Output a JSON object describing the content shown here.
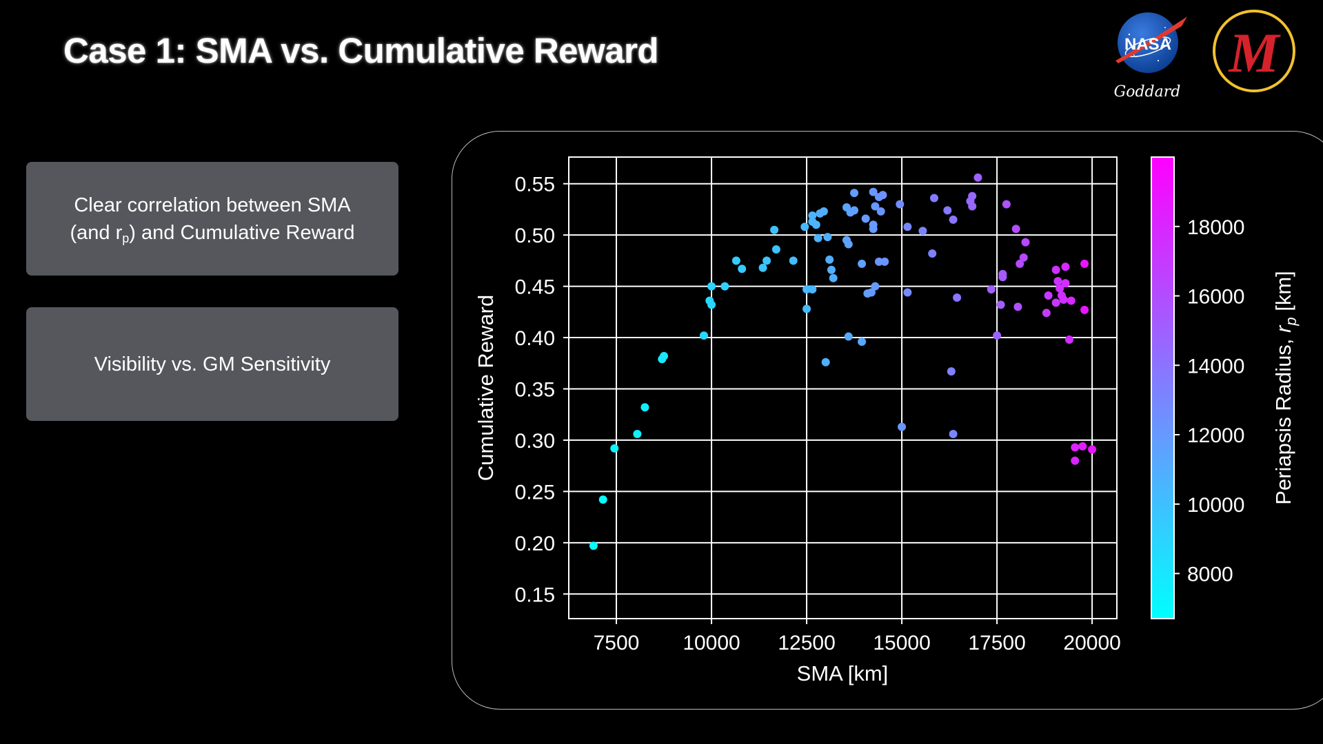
{
  "slide": {
    "title": "Case 1: SMA vs. Cumulative Reward",
    "card1": {
      "line1": "Clear correlation between SMA",
      "line2_pre": "(and r",
      "line2_sub": "p",
      "line2_post": ") and Cumulative Reward"
    },
    "card2": {
      "text": "Visibility vs. GM Sensitivity"
    }
  },
  "logos": {
    "nasa": {
      "wordmark": "NASA",
      "script": "Goddard"
    },
    "m": {
      "letter": "M",
      "ring_color": "#f2c12e",
      "letter_color": "#d6222b"
    }
  },
  "chart_data": {
    "type": "scatter",
    "xlabel": "SMA [km]",
    "ylabel": "Cumulative Reward",
    "xlim": [
      6250,
      20650
    ],
    "ylim": [
      0.126,
      0.576
    ],
    "xticks": [
      7500,
      10000,
      12500,
      15000,
      17500,
      20000
    ],
    "yticks": [
      0.15,
      0.2,
      0.25,
      0.3,
      0.35,
      0.4,
      0.45,
      0.5,
      0.55
    ],
    "ytick_labels": [
      "0.15",
      "0.20",
      "0.25",
      "0.30",
      "0.35",
      "0.40",
      "0.45",
      "0.50",
      "0.55"
    ],
    "grid": true,
    "colorbar": {
      "label": "Periapsis Radius, ",
      "label_sym": "r",
      "label_sub": "p",
      "label_unit": " [km]",
      "range": [
        6700,
        20000
      ],
      "ticks": [
        8000,
        10000,
        12000,
        14000,
        16000,
        18000
      ],
      "colormap": "cool",
      "color_low": "#00ffff",
      "color_high": "#ff00ff"
    },
    "points": [
      {
        "x": 6900,
        "y": 0.197,
        "c": 6900
      },
      {
        "x": 7150,
        "y": 0.242,
        "c": 7000
      },
      {
        "x": 7450,
        "y": 0.292,
        "c": 7200
      },
      {
        "x": 8050,
        "y": 0.306,
        "c": 7500
      },
      {
        "x": 8250,
        "y": 0.332,
        "c": 7600
      },
      {
        "x": 8700,
        "y": 0.379,
        "c": 7900
      },
      {
        "x": 8750,
        "y": 0.382,
        "c": 7950
      },
      {
        "x": 9800,
        "y": 0.402,
        "c": 8700
      },
      {
        "x": 9950,
        "y": 0.436,
        "c": 8800
      },
      {
        "x": 10000,
        "y": 0.432,
        "c": 8850
      },
      {
        "x": 10000,
        "y": 0.45,
        "c": 8900
      },
      {
        "x": 10350,
        "y": 0.45,
        "c": 9100
      },
      {
        "x": 10650,
        "y": 0.475,
        "c": 9300
      },
      {
        "x": 10800,
        "y": 0.467,
        "c": 9400
      },
      {
        "x": 11350,
        "y": 0.468,
        "c": 9700
      },
      {
        "x": 11450,
        "y": 0.475,
        "c": 9800
      },
      {
        "x": 11700,
        "y": 0.486,
        "c": 9900
      },
      {
        "x": 11650,
        "y": 0.505,
        "c": 9850
      },
      {
        "x": 12150,
        "y": 0.475,
        "c": 10200
      },
      {
        "x": 12450,
        "y": 0.508,
        "c": 10400
      },
      {
        "x": 12500,
        "y": 0.447,
        "c": 10350
      },
      {
        "x": 12500,
        "y": 0.428,
        "c": 10300
      },
      {
        "x": 12650,
        "y": 0.447,
        "c": 10500
      },
      {
        "x": 12650,
        "y": 0.513,
        "c": 10600
      },
      {
        "x": 12650,
        "y": 0.519,
        "c": 10650
      },
      {
        "x": 12750,
        "y": 0.51,
        "c": 10700
      },
      {
        "x": 12800,
        "y": 0.497,
        "c": 10700
      },
      {
        "x": 12850,
        "y": 0.521,
        "c": 10900
      },
      {
        "x": 12950,
        "y": 0.523,
        "c": 11000
      },
      {
        "x": 13000,
        "y": 0.376,
        "c": 10800
      },
      {
        "x": 13050,
        "y": 0.498,
        "c": 11000
      },
      {
        "x": 13100,
        "y": 0.476,
        "c": 10950
      },
      {
        "x": 13150,
        "y": 0.466,
        "c": 10900
      },
      {
        "x": 13200,
        "y": 0.458,
        "c": 10950
      },
      {
        "x": 13550,
        "y": 0.527,
        "c": 11400
      },
      {
        "x": 13550,
        "y": 0.495,
        "c": 11500
      },
      {
        "x": 13600,
        "y": 0.491,
        "c": 11450
      },
      {
        "x": 13600,
        "y": 0.401,
        "c": 11100
      },
      {
        "x": 13650,
        "y": 0.522,
        "c": 11600
      },
      {
        "x": 13750,
        "y": 0.524,
        "c": 11650
      },
      {
        "x": 13750,
        "y": 0.541,
        "c": 11800
      },
      {
        "x": 13950,
        "y": 0.472,
        "c": 11600
      },
      {
        "x": 13950,
        "y": 0.396,
        "c": 11200
      },
      {
        "x": 14050,
        "y": 0.516,
        "c": 11900
      },
      {
        "x": 14100,
        "y": 0.443,
        "c": 11850
      },
      {
        "x": 14200,
        "y": 0.444,
        "c": 11900
      },
      {
        "x": 14250,
        "y": 0.542,
        "c": 12100
      },
      {
        "x": 14250,
        "y": 0.51,
        "c": 12000
      },
      {
        "x": 14250,
        "y": 0.506,
        "c": 11950
      },
      {
        "x": 14300,
        "y": 0.45,
        "c": 12000
      },
      {
        "x": 14300,
        "y": 0.528,
        "c": 12150
      },
      {
        "x": 14400,
        "y": 0.537,
        "c": 12250
      },
      {
        "x": 14450,
        "y": 0.523,
        "c": 12250
      },
      {
        "x": 14400,
        "y": 0.474,
        "c": 12300
      },
      {
        "x": 14550,
        "y": 0.474,
        "c": 12400
      },
      {
        "x": 14500,
        "y": 0.539,
        "c": 12400
      },
      {
        "x": 14950,
        "y": 0.53,
        "c": 12700
      },
      {
        "x": 15000,
        "y": 0.313,
        "c": 12200
      },
      {
        "x": 15150,
        "y": 0.508,
        "c": 12900
      },
      {
        "x": 15150,
        "y": 0.444,
        "c": 12800
      },
      {
        "x": 15550,
        "y": 0.504,
        "c": 13100
      },
      {
        "x": 15800,
        "y": 0.482,
        "c": 13300
      },
      {
        "x": 15850,
        "y": 0.536,
        "c": 13500
      },
      {
        "x": 16200,
        "y": 0.524,
        "c": 13800
      },
      {
        "x": 16300,
        "y": 0.367,
        "c": 13300
      },
      {
        "x": 16350,
        "y": 0.306,
        "c": 13000
      },
      {
        "x": 16350,
        "y": 0.515,
        "c": 13900
      },
      {
        "x": 16450,
        "y": 0.439,
        "c": 13900
      },
      {
        "x": 16800,
        "y": 0.533,
        "c": 14500
      },
      {
        "x": 16850,
        "y": 0.538,
        "c": 14600
      },
      {
        "x": 16850,
        "y": 0.528,
        "c": 14550
      },
      {
        "x": 17000,
        "y": 0.556,
        "c": 14900
      },
      {
        "x": 17350,
        "y": 0.447,
        "c": 15000
      },
      {
        "x": 17500,
        "y": 0.402,
        "c": 14900
      },
      {
        "x": 17600,
        "y": 0.432,
        "c": 15200
      },
      {
        "x": 17650,
        "y": 0.462,
        "c": 15400
      },
      {
        "x": 17650,
        "y": 0.459,
        "c": 15350
      },
      {
        "x": 17750,
        "y": 0.53,
        "c": 15700
      },
      {
        "x": 18000,
        "y": 0.506,
        "c": 16000
      },
      {
        "x": 18050,
        "y": 0.43,
        "c": 15800
      },
      {
        "x": 18100,
        "y": 0.472,
        "c": 16100
      },
      {
        "x": 18200,
        "y": 0.478,
        "c": 16200
      },
      {
        "x": 18250,
        "y": 0.493,
        "c": 16300
      },
      {
        "x": 18800,
        "y": 0.424,
        "c": 16800
      },
      {
        "x": 18850,
        "y": 0.441,
        "c": 16900
      },
      {
        "x": 19050,
        "y": 0.466,
        "c": 17300
      },
      {
        "x": 19050,
        "y": 0.434,
        "c": 17200
      },
      {
        "x": 19100,
        "y": 0.455,
        "c": 17400
      },
      {
        "x": 19150,
        "y": 0.448,
        "c": 17500
      },
      {
        "x": 19200,
        "y": 0.441,
        "c": 17500
      },
      {
        "x": 19250,
        "y": 0.437,
        "c": 17600
      },
      {
        "x": 19300,
        "y": 0.453,
        "c": 17700
      },
      {
        "x": 19300,
        "y": 0.469,
        "c": 17800
      },
      {
        "x": 19400,
        "y": 0.398,
        "c": 17600
      },
      {
        "x": 19450,
        "y": 0.436,
        "c": 17900
      },
      {
        "x": 19550,
        "y": 0.293,
        "c": 18200
      },
      {
        "x": 19550,
        "y": 0.28,
        "c": 18100
      },
      {
        "x": 19750,
        "y": 0.294,
        "c": 18500
      },
      {
        "x": 19800,
        "y": 0.472,
        "c": 18900
      },
      {
        "x": 19800,
        "y": 0.427,
        "c": 18800
      },
      {
        "x": 20000,
        "y": 0.291,
        "c": 19000
      }
    ]
  }
}
